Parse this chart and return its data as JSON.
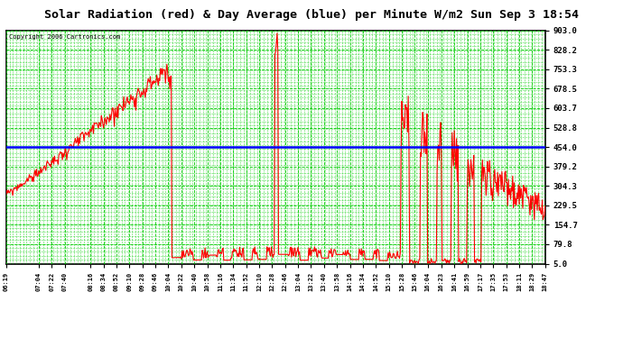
{
  "title": "Solar Radiation (red) & Day Average (blue) per Minute W/m2 Sun Sep 3 18:54",
  "copyright": "Copyright 2006 Cartronics.com",
  "y_ticks": [
    5.0,
    79.8,
    154.7,
    229.5,
    304.3,
    379.2,
    454.0,
    528.8,
    603.7,
    678.5,
    753.3,
    828.2,
    903.0
  ],
  "y_min": 5.0,
  "y_max": 903.0,
  "day_average": 454.0,
  "line_color": "#FF0000",
  "avg_color": "#0000FF",
  "bg_color": "#FFFFFF",
  "plot_bg_color": "#FFFFFF",
  "grid_color": "#00CC00",
  "title_bg": "#C0C0C0",
  "x_labels": [
    "06:19",
    "07:04",
    "07:22",
    "07:40",
    "08:16",
    "08:34",
    "08:52",
    "09:10",
    "09:28",
    "09:46",
    "10:04",
    "10:22",
    "10:40",
    "10:58",
    "11:16",
    "11:34",
    "11:52",
    "12:10",
    "12:28",
    "12:46",
    "13:04",
    "13:22",
    "13:40",
    "13:58",
    "14:16",
    "14:34",
    "14:52",
    "15:10",
    "15:28",
    "15:46",
    "16:04",
    "16:23",
    "16:41",
    "16:59",
    "17:17",
    "17:35",
    "17:53",
    "18:11",
    "18:29",
    "18:47"
  ]
}
